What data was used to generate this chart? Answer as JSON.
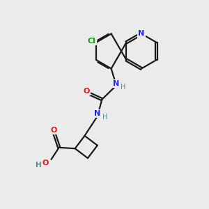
{
  "bg_color": "#ebebeb",
  "bond_color": "#1a1a1a",
  "N_color": "#2020ff",
  "O_color": "#ee1111",
  "Cl_color": "#00aa00",
  "H_color": "#5a8a8a",
  "line_width": 1.6,
  "dbo": 0.055,
  "xlim": [
    0,
    10
  ],
  "ylim": [
    0,
    10
  ]
}
